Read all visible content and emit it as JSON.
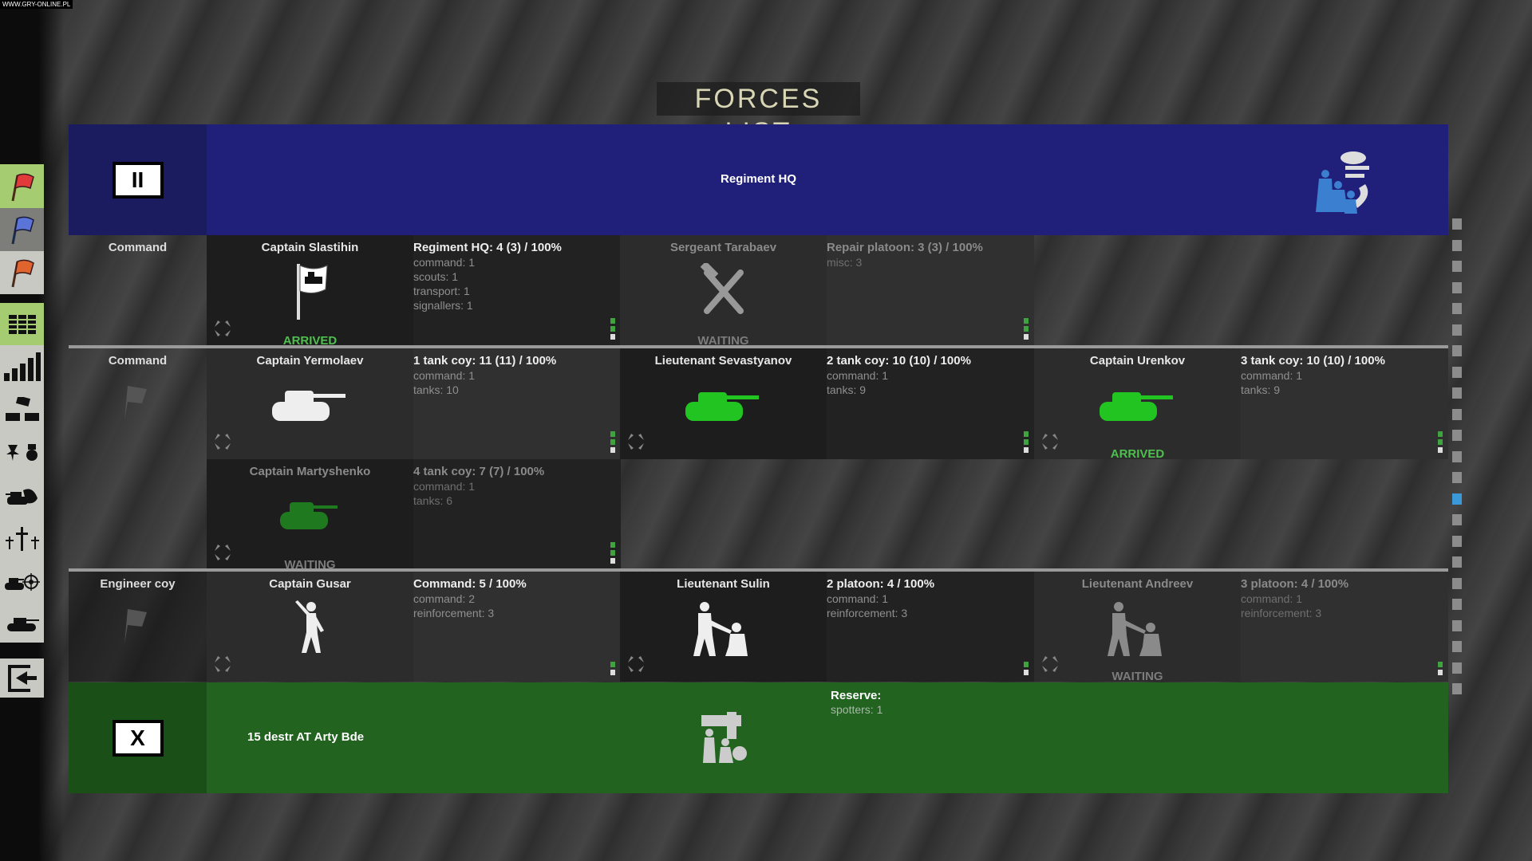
{
  "watermark": "WWW.GRY-ONLINE.PL",
  "title": "FORCES LIST",
  "sidebar": {
    "items": [
      {
        "name": "red-flag-icon",
        "active": true
      },
      {
        "name": "blue-flag-icon",
        "active": false
      },
      {
        "name": "orange-flag-icon",
        "active": false
      },
      {
        "name": "grid-icon",
        "active": true
      },
      {
        "name": "bar-chart-icon"
      },
      {
        "name": "bricks-icon"
      },
      {
        "name": "medals-icon"
      },
      {
        "name": "destroyed-tank-icon"
      },
      {
        "name": "graves-icon"
      },
      {
        "name": "tank-target-icon"
      },
      {
        "name": "tank-icon"
      },
      {
        "name": "exit-icon"
      }
    ]
  },
  "header": {
    "title": "Regiment HQ",
    "button": "II",
    "color": "#20207a"
  },
  "rows": [
    {
      "label": "Command",
      "slots": [
        {
          "name": "Captain Slastihin",
          "heading": "Regiment HQ: 4 (3) / 100%",
          "lines": [
            "command: 1",
            "scouts: 1",
            "transport: 1",
            "signallers: 1"
          ],
          "status": "ARRIVED",
          "icon": "hq-flag-icon"
        },
        {
          "name": "Sergeant Tarabaev",
          "heading": "Repair platoon: 3 (3) / 100%",
          "lines": [
            "misc: 3"
          ],
          "status": "WAITING",
          "icon": "repair-tools-icon"
        }
      ]
    },
    {
      "label": "Command",
      "slots": [
        {
          "name": "Captain Yermolaev",
          "heading": "1 tank coy: 11 (11) / 100%",
          "lines": [
            "command: 1",
            "tanks: 10"
          ],
          "icon": "white-tank-icon"
        },
        {
          "name": "Lieutenant Sevastyanov",
          "heading": "2 tank coy: 10 (10) / 100%",
          "lines": [
            "command: 1",
            "tanks: 9"
          ],
          "icon": "green-tank-icon"
        },
        {
          "name": "Captain Urenkov",
          "heading": "3 tank coy: 10 (10) / 100%",
          "lines": [
            "command: 1",
            "tanks: 9"
          ],
          "status": "ARRIVED",
          "icon": "green-tank-icon"
        },
        {
          "name": "Captain Martyshenko",
          "heading": "4 tank coy: 7 (7) / 100%",
          "lines": [
            "command: 1",
            "tanks: 6"
          ],
          "status": "WAITING",
          "icon": "dark-green-tank-icon"
        }
      ]
    },
    {
      "label": "Engineer coy",
      "slots": [
        {
          "name": "Captain Gusar",
          "heading": "Command: 5 / 100%",
          "lines": [
            "command: 2",
            "reinforcement: 3"
          ],
          "icon": "officer-icon"
        },
        {
          "name": "Lieutenant Sulin",
          "heading": "2 platoon: 4 / 100%",
          "lines": [
            "command: 1",
            "reinforcement: 3"
          ],
          "icon": "infantry-icon"
        },
        {
          "name": "Lieutenant Andreev",
          "heading": "3 platoon: 4 / 100%",
          "lines": [
            "command: 1",
            "reinforcement: 3"
          ],
          "status": "WAITING",
          "icon": "infantry-icon"
        }
      ]
    }
  ],
  "reserve": {
    "button": "X",
    "unit": "15 destr AT Arty Bde",
    "heading": "Reserve:",
    "lines": [
      "spotters: 1"
    ],
    "color": "#21631f"
  },
  "scrollbar": {
    "active_index": 13,
    "count": 23
  }
}
